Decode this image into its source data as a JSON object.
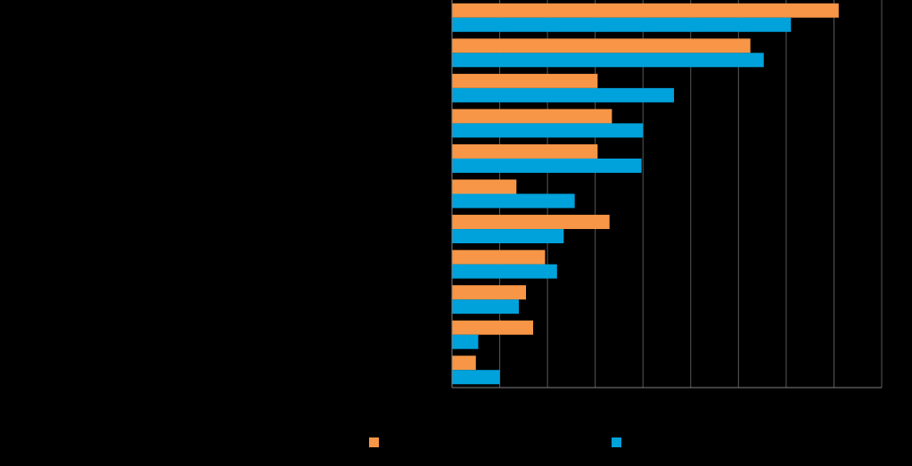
{
  "chart_data": {
    "type": "bar",
    "orientation": "horizontal",
    "categories": [
      "",
      "",
      "",
      "",
      "",
      "",
      "",
      "",
      "",
      "",
      ""
    ],
    "series": [
      {
        "color": "#F79646",
        "values": [
          81,
          62.5,
          30.5,
          33.5,
          30.5,
          13.5,
          33,
          19.5,
          15.5,
          17,
          5
        ]
      },
      {
        "color": "#00A2DB",
        "values": [
          71,
          65.3,
          46.5,
          40,
          39.7,
          25.7,
          23.4,
          22,
          14,
          5.5,
          10
        ]
      }
    ],
    "xlim": [
      0,
      90
    ],
    "x_grid_step": 10,
    "grid": true,
    "legend": "bottom"
  }
}
